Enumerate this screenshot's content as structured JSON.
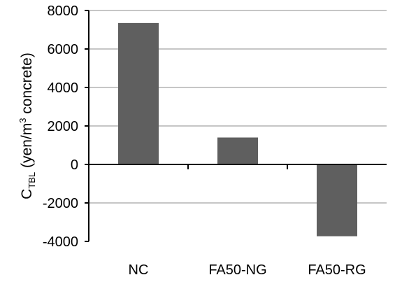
{
  "chart_data": {
    "type": "bar",
    "categories": [
      "NC",
      "FA50-NG",
      "FA50-RG"
    ],
    "values": [
      7350,
      1400,
      -3730
    ],
    "ylabel": {
      "prefix": "C",
      "subscript": "TBL",
      "middle": " (yen/m",
      "superscript": "3",
      "suffix": " concrete)"
    },
    "xlabel": "",
    "ylim": [
      -4000,
      8000
    ],
    "yticks": [
      "-4000",
      "-2000",
      "0",
      "2000",
      "4000",
      "6000",
      "8000"
    ],
    "grid": true,
    "legend": "none",
    "colors": {
      "bar": "#5f5f5f",
      "grid": "#8c8c8c",
      "axis": "#000000"
    }
  }
}
